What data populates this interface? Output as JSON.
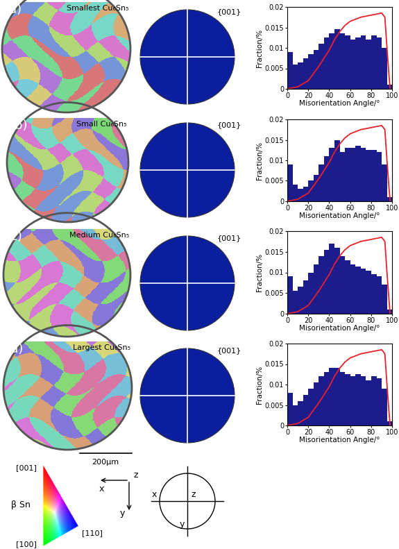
{
  "panels": [
    {
      "label": "(a)",
      "size": "Smallest",
      "phase": "Cu₆Sn₅",
      "pole_figure": "{001}"
    },
    {
      "label": "(b)",
      "size": "Small",
      "phase": "Cu₆Sn₅",
      "pole_figure": "{001}"
    },
    {
      "label": "(c)",
      "size": "Medium",
      "phase": "Cu₆Sn₅",
      "pole_figure": "{001}"
    },
    {
      "label": "(d)",
      "size": "Largest",
      "phase": "Cu₆Sn₅",
      "pole_figure": "{001}"
    }
  ],
  "scale_bar": "200μm",
  "key": {
    "phase": "β Sn",
    "directions": [
      "[001]",
      "[100]",
      "[110]"
    ],
    "sample_axes": [
      "x",
      "y",
      "z"
    ]
  },
  "chart_data": [
    {
      "type": "histogram",
      "x_label": "Misorientation Angle/°",
      "y_label": "Fraction/%",
      "color": "#1c1c8c",
      "bins": [
        0,
        5,
        10,
        15,
        20,
        25,
        30,
        35,
        40,
        45,
        50,
        55,
        60,
        65,
        70,
        75,
        80,
        85,
        90,
        95,
        100
      ],
      "counts": [
        0.009,
        0.006,
        0.0065,
        0.0075,
        0.0085,
        0.0095,
        0.011,
        0.0125,
        0.0135,
        0.0145,
        0.0135,
        0.013,
        0.012,
        0.0125,
        0.013,
        0.012,
        0.013,
        0.0125,
        0.01,
        0.001
      ],
      "xlim": [
        0,
        100
      ],
      "xticks": [
        0,
        20,
        40,
        60,
        80,
        100
      ],
      "ylim": [
        0,
        0.02
      ],
      "yticks": [
        0,
        0.005,
        0.01,
        0.015,
        0.02
      ],
      "reference_line": {
        "type": "line",
        "color": "#e8202a",
        "x": [
          0,
          10,
          20,
          30,
          40,
          45,
          50,
          55,
          60,
          70,
          80,
          90,
          93,
          95,
          97,
          98
        ],
        "values": [
          0,
          0.0005,
          0.002,
          0.0055,
          0.0095,
          0.012,
          0.014,
          0.0155,
          0.0165,
          0.0175,
          0.018,
          0.0185,
          0.0175,
          0.01,
          0.003,
          0
        ]
      }
    },
    {
      "type": "histogram",
      "x_label": "Misorientation Angle/°",
      "y_label": "Fraction/%",
      "color": "#1c1c8c",
      "bins": [
        0,
        5,
        10,
        15,
        20,
        25,
        30,
        35,
        40,
        45,
        50,
        55,
        60,
        65,
        70,
        75,
        80,
        85,
        90,
        95,
        100
      ],
      "counts": [
        0.009,
        0.004,
        0.003,
        0.0035,
        0.005,
        0.0065,
        0.009,
        0.011,
        0.013,
        0.015,
        0.012,
        0.013,
        0.013,
        0.0135,
        0.013,
        0.0125,
        0.0125,
        0.012,
        0.009,
        0.001
      ],
      "xlim": [
        0,
        100
      ],
      "xticks": [
        0,
        20,
        40,
        60,
        80,
        100
      ],
      "ylim": [
        0,
        0.02
      ],
      "yticks": [
        0,
        0.005,
        0.01,
        0.015,
        0.02
      ],
      "reference_line": {
        "type": "line",
        "color": "#e8202a",
        "x": [
          0,
          10,
          20,
          30,
          40,
          45,
          50,
          55,
          60,
          70,
          80,
          90,
          93,
          95,
          97,
          98
        ],
        "values": [
          0,
          0.0005,
          0.002,
          0.0055,
          0.0095,
          0.012,
          0.014,
          0.0155,
          0.0165,
          0.0175,
          0.018,
          0.0185,
          0.0175,
          0.01,
          0.003,
          0
        ]
      }
    },
    {
      "type": "histogram",
      "x_label": "Misorientation Angle/°",
      "y_label": "Fraction/%",
      "color": "#1c1c8c",
      "bins": [
        0,
        5,
        10,
        15,
        20,
        25,
        30,
        35,
        40,
        45,
        50,
        55,
        60,
        65,
        70,
        75,
        80,
        85,
        90,
        95,
        100
      ],
      "counts": [
        0.009,
        0.0055,
        0.0065,
        0.008,
        0.01,
        0.012,
        0.014,
        0.0155,
        0.017,
        0.016,
        0.014,
        0.013,
        0.012,
        0.0115,
        0.011,
        0.0105,
        0.0095,
        0.009,
        0.007,
        0.001
      ],
      "xlim": [
        0,
        100
      ],
      "xticks": [
        0,
        20,
        40,
        60,
        80,
        100
      ],
      "ylim": [
        0,
        0.02
      ],
      "yticks": [
        0,
        0.005,
        0.01,
        0.015,
        0.02
      ],
      "reference_line": {
        "type": "line",
        "color": "#e8202a",
        "x": [
          0,
          10,
          20,
          30,
          40,
          45,
          50,
          55,
          60,
          70,
          80,
          90,
          93,
          95,
          97,
          98
        ],
        "values": [
          0,
          0.0005,
          0.002,
          0.0055,
          0.0095,
          0.012,
          0.014,
          0.0155,
          0.0165,
          0.0175,
          0.018,
          0.0185,
          0.0175,
          0.01,
          0.003,
          0
        ]
      }
    },
    {
      "type": "histogram",
      "x_label": "Misorientation Angle/°",
      "y_label": "Fraction/%",
      "color": "#1c1c8c",
      "bins": [
        0,
        5,
        10,
        15,
        20,
        25,
        30,
        35,
        40,
        45,
        50,
        55,
        60,
        65,
        70,
        75,
        80,
        85,
        90,
        95,
        100
      ],
      "counts": [
        0.008,
        0.005,
        0.006,
        0.0075,
        0.009,
        0.0105,
        0.012,
        0.013,
        0.014,
        0.014,
        0.013,
        0.0125,
        0.012,
        0.0125,
        0.012,
        0.011,
        0.012,
        0.0115,
        0.009,
        0.001
      ],
      "xlim": [
        0,
        100
      ],
      "xticks": [
        0,
        20,
        40,
        60,
        80,
        100
      ],
      "ylim": [
        0,
        0.02
      ],
      "yticks": [
        0,
        0.005,
        0.01,
        0.015,
        0.02
      ],
      "reference_line": {
        "type": "line",
        "color": "#e8202a",
        "x": [
          0,
          10,
          20,
          30,
          40,
          45,
          50,
          55,
          60,
          70,
          80,
          90,
          93,
          95,
          97,
          98
        ],
        "values": [
          0,
          0.0005,
          0.002,
          0.0055,
          0.0095,
          0.012,
          0.014,
          0.0155,
          0.0165,
          0.0175,
          0.018,
          0.0185,
          0.0175,
          0.01,
          0.003,
          0
        ]
      }
    }
  ]
}
